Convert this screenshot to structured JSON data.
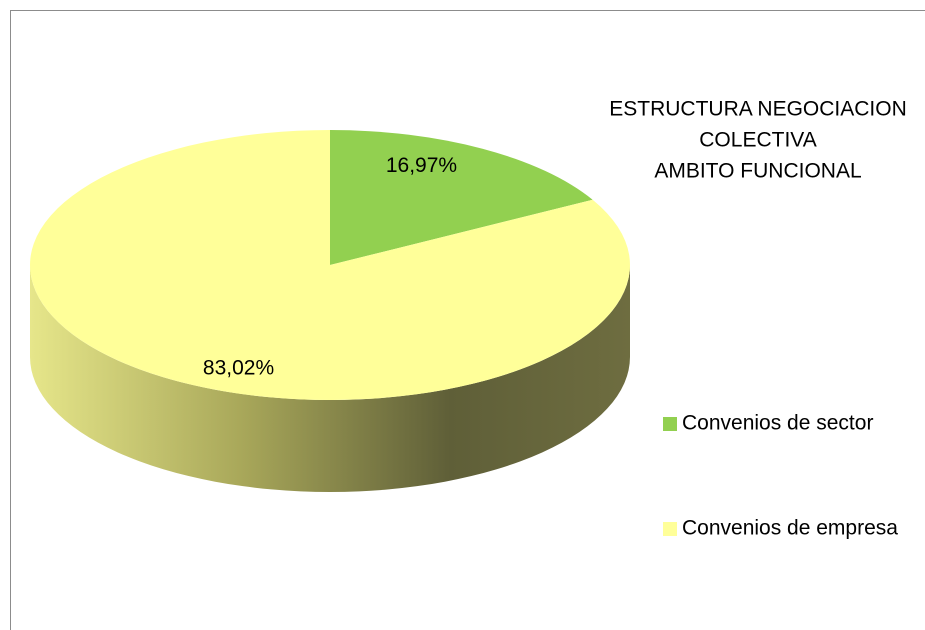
{
  "chart_data": {
    "type": "pie",
    "title": [
      "ESTRUCTURA NEGOCIACION",
      "COLECTIVA",
      "AMBITO FUNCIONAL"
    ],
    "categories": [
      "Convenios de sector",
      "Convenios de empresa"
    ],
    "values": [
      16.97,
      83.02
    ],
    "value_labels": [
      "16,97%",
      "83,02%"
    ],
    "colors": [
      "#92d050",
      "#ffff99"
    ],
    "legend": "right"
  }
}
